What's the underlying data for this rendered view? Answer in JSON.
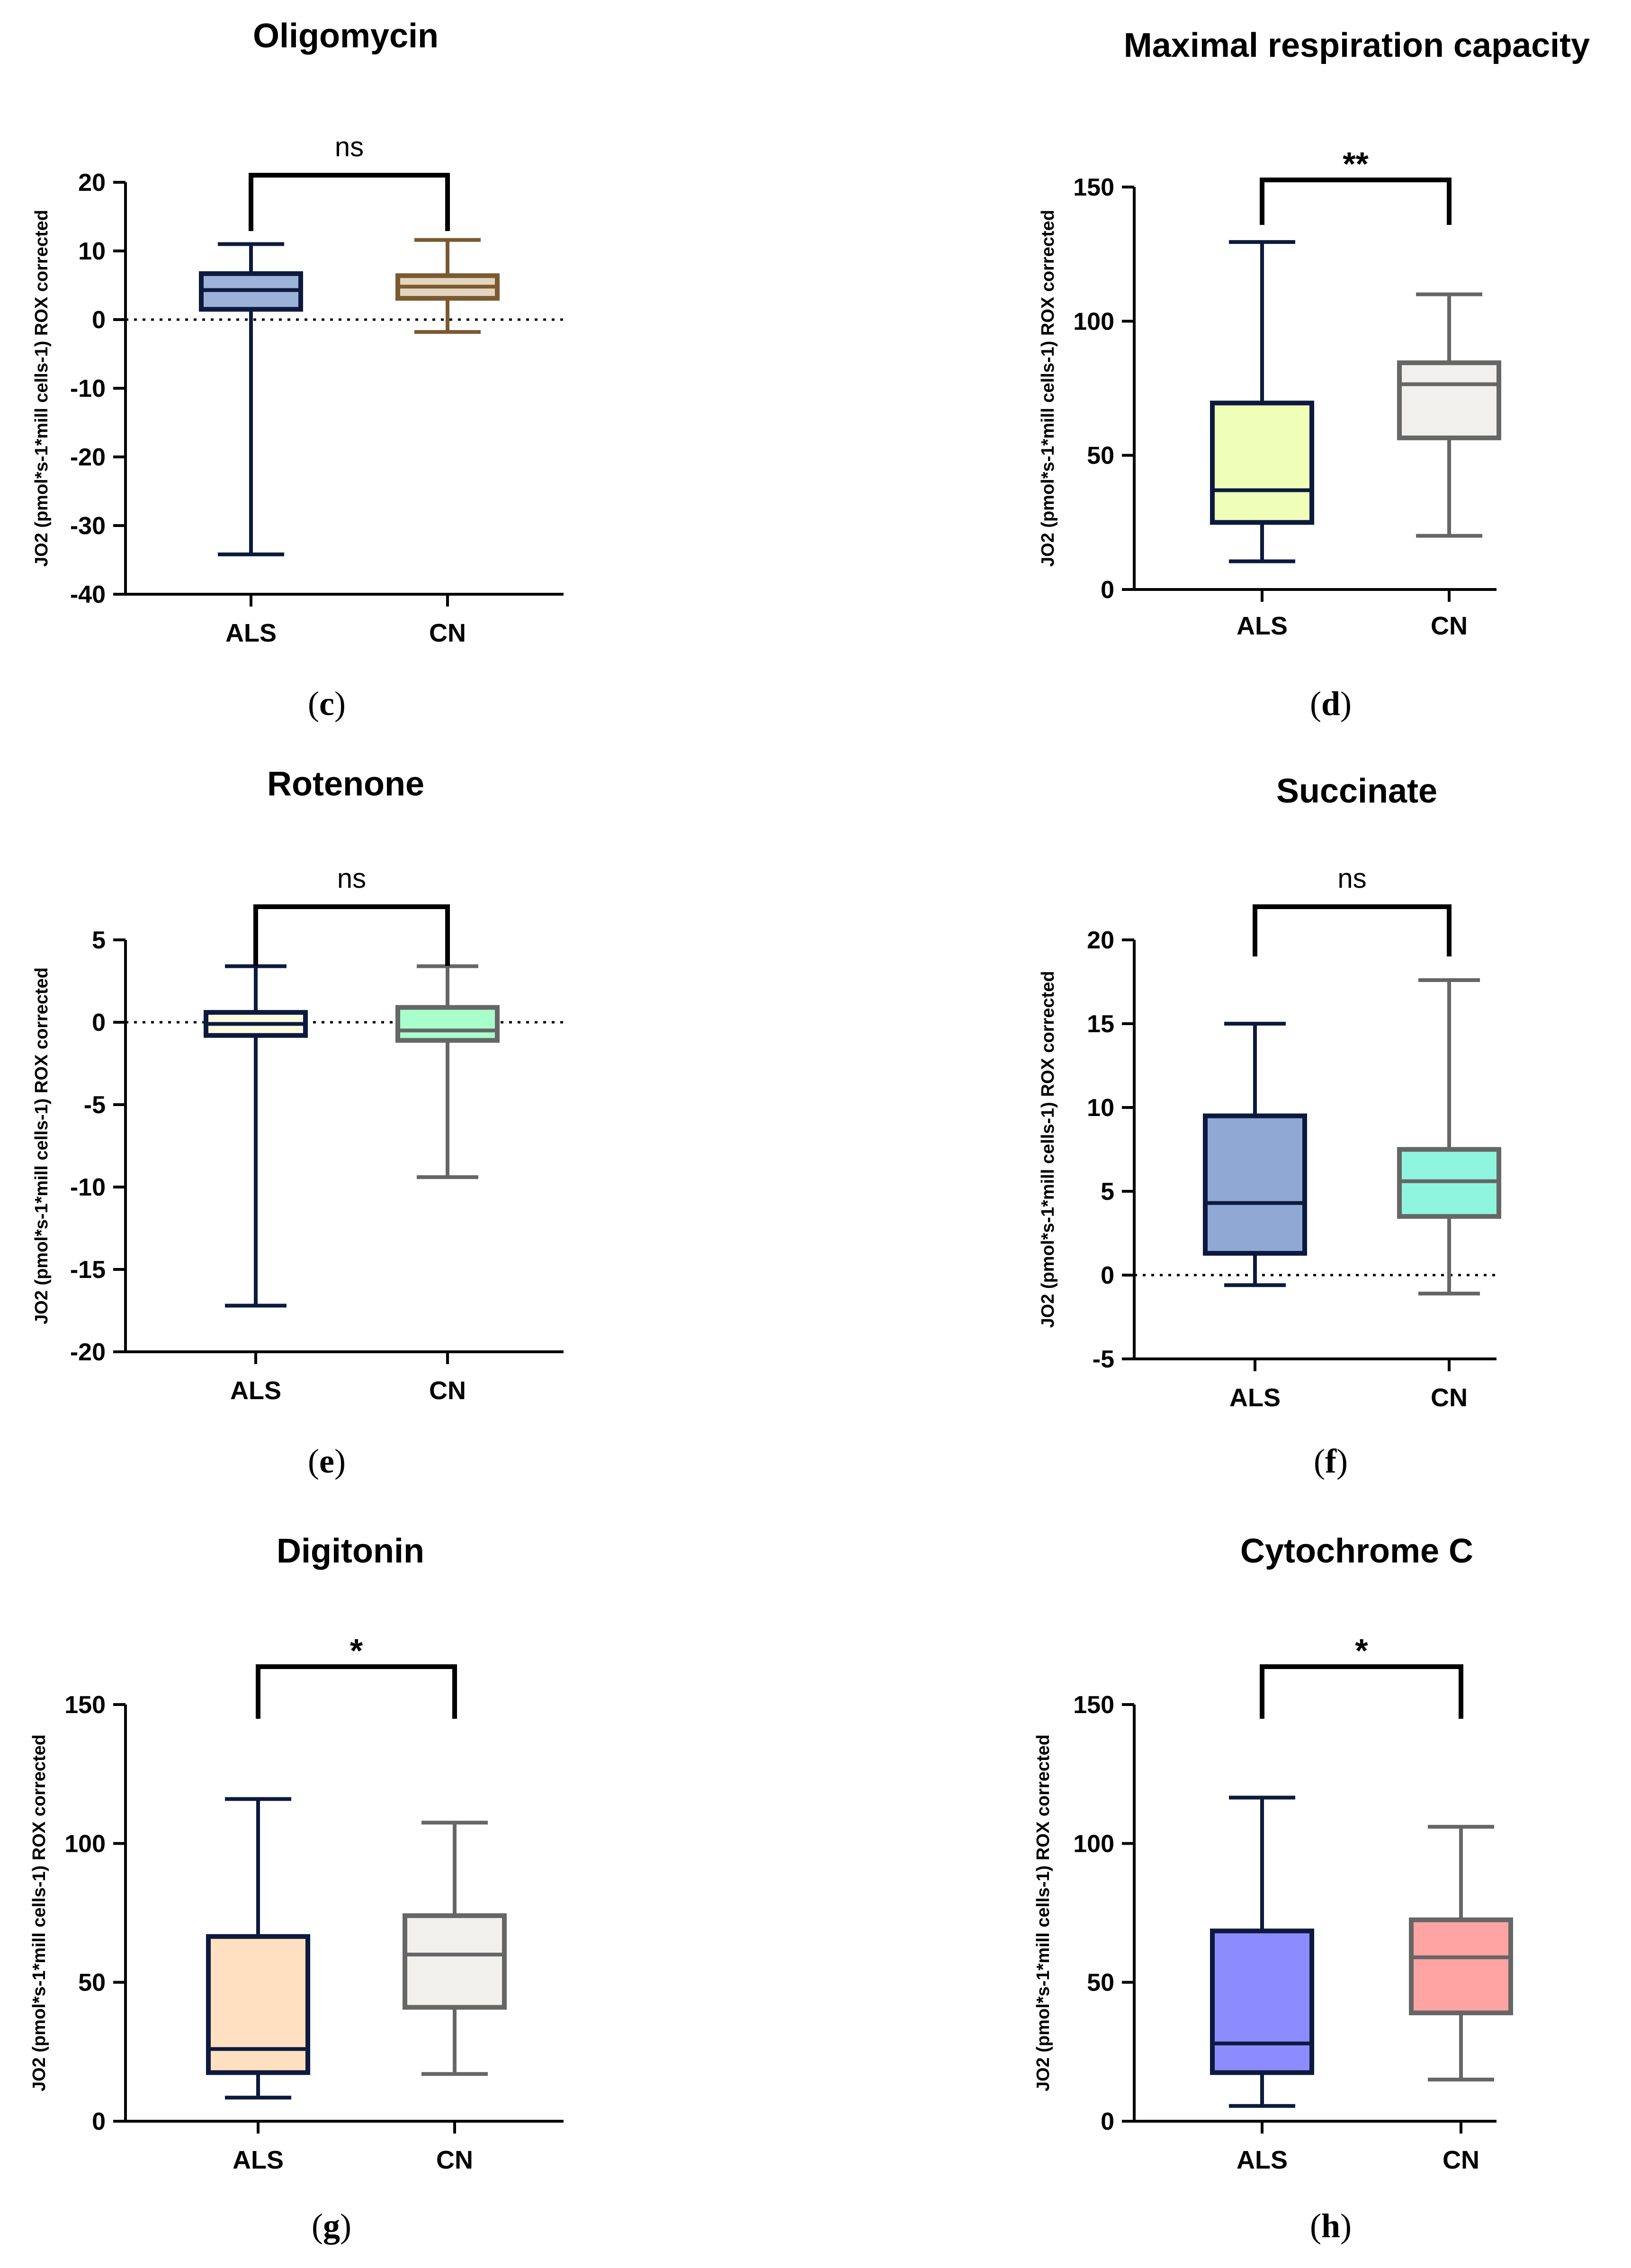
{
  "chart_data": [
    {
      "panel_label": "c",
      "type": "box",
      "title": "Oligomycin",
      "ylabel": "JO2 (pmol*s-1*mill cells-1) ROX corrected",
      "ylim": [
        -40,
        20
      ],
      "yticks": [
        20,
        10,
        0,
        -10,
        -20,
        -30,
        -40
      ],
      "zero_line": true,
      "categories": [
        "ALS",
        "CN"
      ],
      "boxes": [
        {
          "name": "ALS",
          "min": -34.2,
          "q1": 1.5,
          "median": 4.3,
          "q3": 6.7,
          "max": 11,
          "fill": "#9db2d8",
          "stroke": "#0d1a3e"
        },
        {
          "name": "CN",
          "min": -1.8,
          "q1": 3.1,
          "median": 4.8,
          "q3": 6.4,
          "max": 11.6,
          "fill": "#e3d5c0",
          "stroke": "#7b5a32"
        }
      ],
      "significance": "ns"
    },
    {
      "panel_label": "d",
      "type": "box",
      "title": "Maximal respiration capacity",
      "ylabel": "JO2 (pmol*s-1*mill cells-1) ROX corrected",
      "ylim": [
        0,
        150
      ],
      "yticks": [
        150,
        100,
        50,
        0
      ],
      "zero_line": false,
      "categories": [
        "ALS",
        "CN"
      ],
      "boxes": [
        {
          "name": "ALS",
          "min": 10.5,
          "q1": 25,
          "median": 37,
          "q3": 69.5,
          "max": 129.5,
          "fill": "#f0ffb8",
          "stroke": "#0d1a3e"
        },
        {
          "name": "CN",
          "min": 20,
          "q1": 56.5,
          "median": 76.5,
          "q3": 84.5,
          "max": 110,
          "fill": "#f2f0ec",
          "stroke": "#666666"
        }
      ],
      "significance": "**"
    },
    {
      "panel_label": "e",
      "type": "box",
      "title": "Rotenone",
      "ylabel": "JO2 (pmol*s-1*mill cells-1) ROX corrected",
      "ylim": [
        -20,
        5
      ],
      "yticks": [
        5,
        0,
        -5,
        -10,
        -15,
        -20
      ],
      "zero_line": true,
      "categories": [
        "ALS",
        "CN"
      ],
      "boxes": [
        {
          "name": "ALS",
          "min": -17.2,
          "q1": -0.8,
          "median": -0.1,
          "q3": 0.6,
          "max": 3.4,
          "fill": "#fbfbe0",
          "stroke": "#0d1a3e"
        },
        {
          "name": "CN",
          "min": -9.4,
          "q1": -1.1,
          "median": -0.5,
          "q3": 0.9,
          "max": 3.4,
          "fill": "#a8ffcc",
          "stroke": "#666666"
        }
      ],
      "significance": "ns"
    },
    {
      "panel_label": "f",
      "type": "box",
      "title": "Succinate",
      "ylabel": "JO2 (pmol*s-1*mill cells-1) ROX corrected",
      "ylim": [
        -5,
        20
      ],
      "yticks": [
        20,
        15,
        10,
        5,
        0,
        -5
      ],
      "zero_line": true,
      "categories": [
        "ALS",
        "CN"
      ],
      "boxes": [
        {
          "name": "ALS",
          "min": -0.6,
          "q1": 1.3,
          "median": 4.3,
          "q3": 9.5,
          "max": 15,
          "fill": "#8fa8d4",
          "stroke": "#0d1a3e"
        },
        {
          "name": "CN",
          "min": -1.1,
          "q1": 3.5,
          "median": 5.6,
          "q3": 7.5,
          "max": 17.6,
          "fill": "#8ff5df",
          "stroke": "#666666"
        }
      ],
      "significance": "ns"
    },
    {
      "panel_label": "g",
      "type": "box",
      "title": "Digitonin",
      "ylabel": "JO2 (pmol*s-1*mill cells-1) ROX corrected",
      "ylim": [
        0,
        150
      ],
      "yticks": [
        150,
        100,
        50,
        0
      ],
      "zero_line": false,
      "categories": [
        "ALS",
        "CN"
      ],
      "boxes": [
        {
          "name": "ALS",
          "min": 8.5,
          "q1": 17.5,
          "median": 26,
          "q3": 66.5,
          "max": 116,
          "fill": "#ffe0c0",
          "stroke": "#0d1a3e"
        },
        {
          "name": "CN",
          "min": 17,
          "q1": 41,
          "median": 60,
          "q3": 74,
          "max": 107.5,
          "fill": "#f2f0ec",
          "stroke": "#666666"
        }
      ],
      "significance": "*"
    },
    {
      "panel_label": "h",
      "type": "box",
      "title": "Cytochrome C",
      "ylabel": "JO2 (pmol*s-1*mill cells-1) ROX corrected",
      "ylim": [
        0,
        150
      ],
      "yticks": [
        150,
        100,
        50,
        0
      ],
      "zero_line": false,
      "categories": [
        "ALS",
        "CN"
      ],
      "boxes": [
        {
          "name": "ALS",
          "min": 5.5,
          "q1": 17.5,
          "median": 28,
          "q3": 68.5,
          "max": 116.5,
          "fill": "#8c8cff",
          "stroke": "#0d1a3e"
        },
        {
          "name": "CN",
          "min": 15,
          "q1": 39,
          "median": 59,
          "q3": 72.5,
          "max": 106,
          "fill": "#ffa3a3",
          "stroke": "#666666"
        }
      ],
      "significance": "*"
    }
  ]
}
